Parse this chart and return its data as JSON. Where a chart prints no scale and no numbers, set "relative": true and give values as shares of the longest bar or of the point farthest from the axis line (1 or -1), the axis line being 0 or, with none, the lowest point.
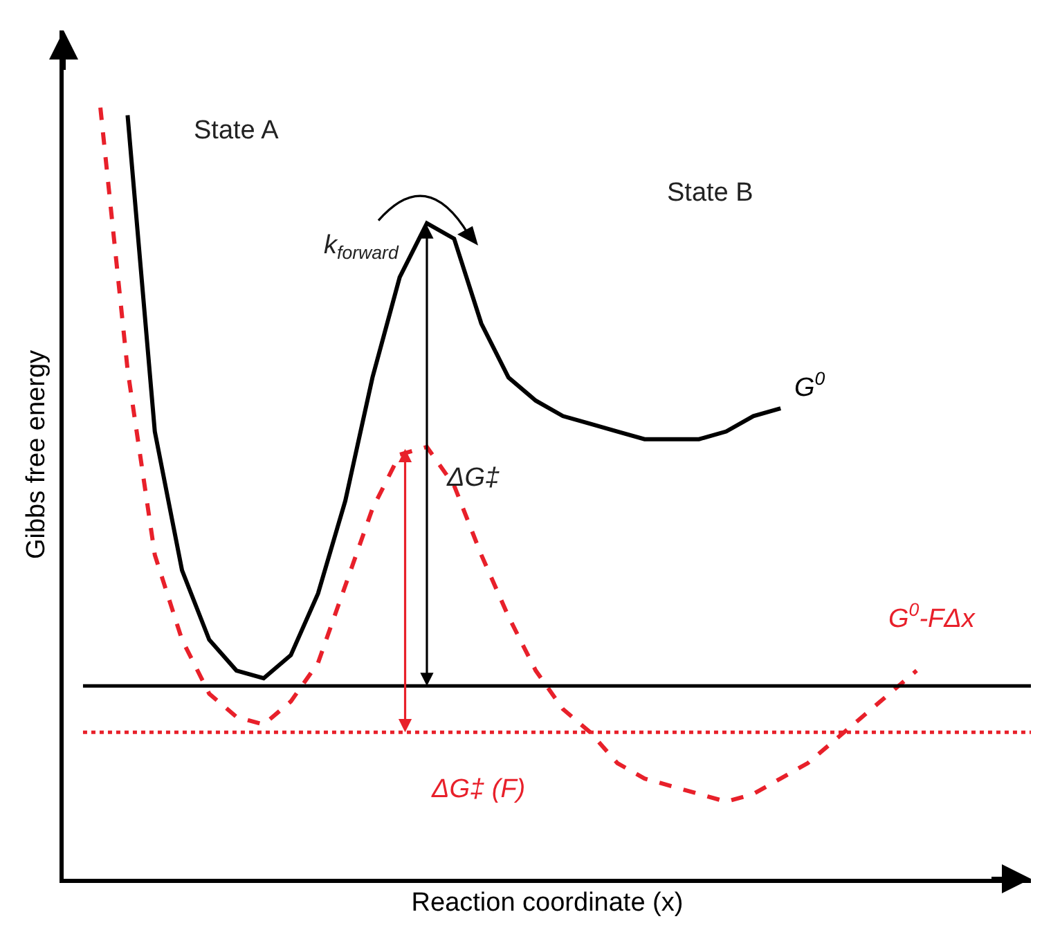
{
  "chart_data": {
    "type": "line",
    "relative": true,
    "xlabel": "Reaction coordinate (x)",
    "ylabel": "Gibbs free energy",
    "categories": [
      null,
      null,
      null,
      null,
      null,
      null,
      null,
      null,
      null,
      null,
      null,
      null,
      null,
      null,
      null,
      null,
      null,
      null,
      null,
      null,
      null,
      null,
      null,
      null,
      null,
      null,
      null,
      null,
      null,
      null,
      null
    ],
    "series": [
      {
        "name": "G$^{0}$",
        "color": "#000000",
        "line_style": "solid",
        "values": [
          null,
          0.99,
          0.58,
          0.4,
          0.31,
          0.27,
          0.26,
          0.29,
          0.37,
          0.49,
          0.65,
          0.78,
          0.85,
          0.83,
          0.72,
          0.65,
          0.62,
          0.6,
          0.59,
          0.58,
          0.57,
          0.57,
          0.57,
          0.58,
          0.6,
          0.61,
          null,
          null,
          null,
          null,
          null
        ]
      },
      {
        "name": "G$^{0}$-FΔx",
        "color": "#e8202a",
        "line_style": "dashed",
        "values": [
          1,
          0.66,
          0.42,
          0.31,
          0.24,
          0.21,
          0.2,
          0.23,
          0.28,
          0.38,
          0.48,
          0.55,
          0.56,
          0.51,
          0.42,
          0.34,
          0.27,
          0.22,
          0.19,
          0.15,
          0.13,
          0.12,
          0.11,
          0.1,
          0.11,
          0.13,
          0.15,
          0.18,
          0.21,
          0.24,
          0.27
        ]
      }
    ],
    "ref_lines": [
      {
        "axis": "y",
        "value": 0.25,
        "color": "#000000",
        "line_style": "solid"
      },
      {
        "axis": "y",
        "value": 0.19,
        "color": "#e8202a",
        "line_style": "dotted"
      }
    ],
    "annotations": [
      "State A",
      "State B",
      "k$_{forward}$",
      "ΔG‡",
      "ΔG‡ (F)"
    ],
    "legend": false,
    "marker": "none"
  }
}
